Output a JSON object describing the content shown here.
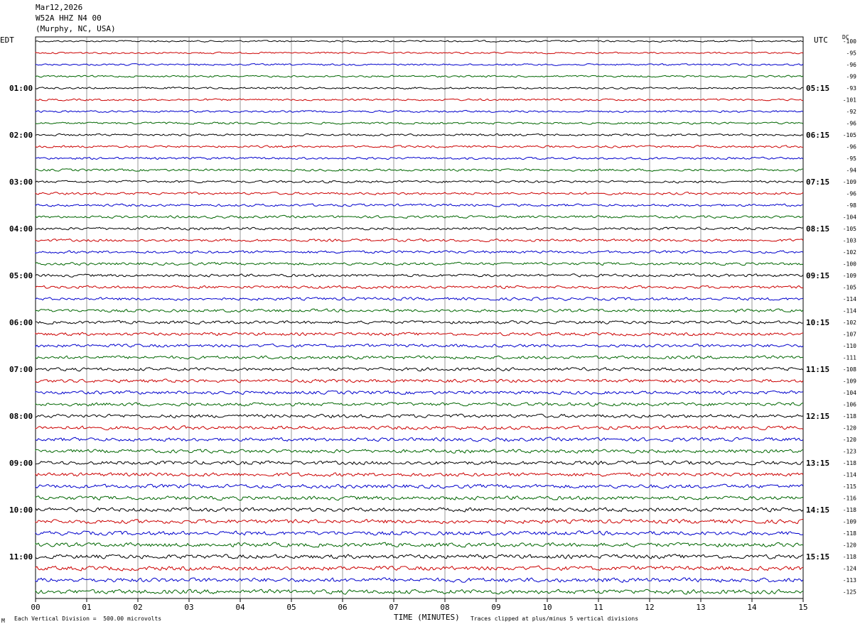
{
  "header": {
    "date": "Mar12,2026",
    "station": "W52A HHZ N4 00",
    "location": "(Murphy, NC, USA)"
  },
  "left_tz_label": "EDT",
  "right_tz_label": "UTC",
  "dc_label": "DC",
  "footer": {
    "vertical_division": "Each Vertical Division =  500.00 microvolts",
    "clip_note": "Traces clipped at plus/minus 5 vertical divisions",
    "corner_mark": "M"
  },
  "colors": {
    "trace_cycle": [
      "#000000",
      "#cc0000",
      "#0000cc",
      "#006600"
    ],
    "grid": "#000000"
  },
  "chart_data": {
    "type": "line",
    "title": "",
    "xlabel": "TIME (MINUTES)",
    "ylabel": "",
    "xlim": [
      0,
      15
    ],
    "x_ticks": [
      "00",
      "01",
      "02",
      "03",
      "04",
      "05",
      "06",
      "07",
      "08",
      "09",
      "10",
      "11",
      "12",
      "13",
      "14",
      "15"
    ],
    "traces_per_hour": 4,
    "trace_count": 48,
    "left_hour_labels": [
      "01:00",
      "02:00",
      "03:00",
      "04:00",
      "05:00",
      "06:00",
      "07:00",
      "08:00",
      "09:00",
      "10:00",
      "11:00"
    ],
    "right_hour_labels": [
      "05:15",
      "06:15",
      "07:15",
      "08:15",
      "09:15",
      "10:15",
      "11:15",
      "12:15",
      "13:15",
      "14:15",
      "15:15"
    ],
    "dc_offsets": [
      -100,
      -95,
      -96,
      -99,
      -93,
      -101,
      -92,
      -96,
      -105,
      -96,
      -95,
      -94,
      -109,
      -96,
      -98,
      -104,
      -105,
      -103,
      -102,
      -100,
      -109,
      -105,
      -114,
      -114,
      -102,
      -107,
      -110,
      -111,
      -108,
      -109,
      -104,
      -106,
      -118,
      -120,
      -120,
      -123,
      -118,
      -114,
      -115,
      -116,
      -118,
      -109,
      -118,
      -120,
      -118,
      -124,
      -113,
      -125
    ],
    "grid": true
  }
}
